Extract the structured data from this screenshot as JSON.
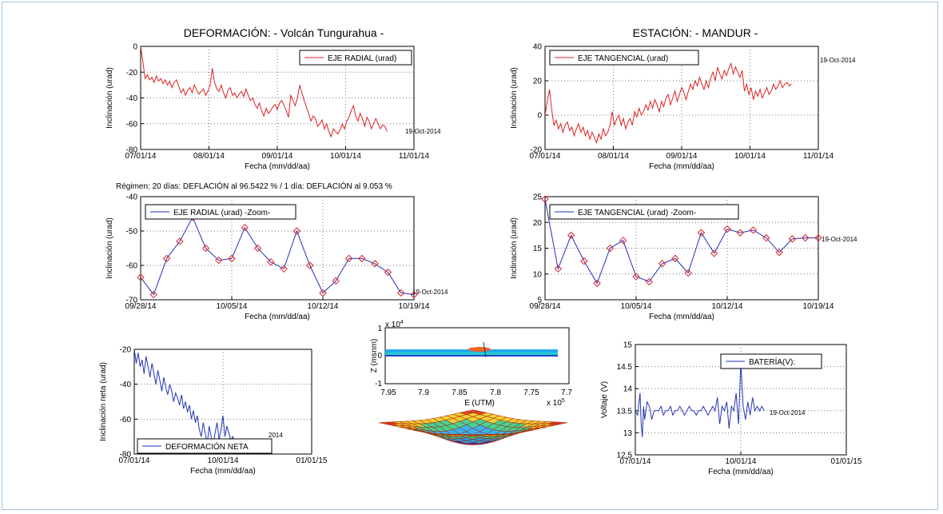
{
  "header": {
    "left_title": "DEFORMACIÓN: - Volcán Tungurahua -",
    "right_title": "ESTACIÓN: - MANDUR -"
  },
  "regimen_text": "Régimen: 20 días: DEFLACIÓN al 96.5422 % / 1 día: DEFLACIÓN al 9.053 %",
  "colors": {
    "red": "#dd2222",
    "blue": "#2233bb",
    "frame": "#9ec5e8"
  },
  "chart_data": [
    {
      "id": "radial",
      "type": "line",
      "xlabel": "Fecha (mm/dd/aa)",
      "ylabel": "Inclinación (urad)",
      "x_ticks": [
        "07/01/14",
        "08/01/14",
        "09/01/14",
        "10/01/14",
        "11/01/14"
      ],
      "y_ticks": [
        "0",
        "-20",
        "-40",
        "-60",
        "-80"
      ],
      "ylim": [
        -80,
        0
      ],
      "grid": true,
      "legend": "top-right",
      "annotation": "19-Oct-2014",
      "series": [
        {
          "name": "EJE RADIAL (urad)",
          "color": "red",
          "x": [
            0,
            1,
            2,
            3,
            4,
            5,
            6,
            7,
            8,
            9,
            10,
            11,
            12,
            13,
            14,
            15,
            16,
            17,
            18,
            19,
            20,
            21,
            22,
            23,
            24,
            25,
            26,
            27,
            28,
            29,
            30,
            31,
            32,
            33,
            34,
            35,
            36,
            37,
            38,
            39,
            40,
            41,
            42,
            43,
            44,
            45,
            46,
            47,
            48,
            49,
            50,
            51,
            52,
            53,
            54,
            55,
            56,
            57,
            58,
            59,
            60,
            61,
            62,
            63,
            64,
            65,
            66,
            67,
            68,
            69,
            70,
            71,
            72,
            73,
            74,
            75,
            76,
            77,
            78,
            79,
            80,
            81,
            82,
            83,
            84,
            85,
            86,
            87,
            88,
            89,
            90,
            91,
            92,
            93,
            94,
            95,
            96,
            97,
            98,
            99,
            100,
            101,
            102,
            103,
            104,
            105,
            106,
            107,
            108,
            109,
            110
          ],
          "values": [
            0,
            -12,
            -25,
            -22,
            -26,
            -24,
            -28,
            -23,
            -27,
            -25,
            -29,
            -26,
            -30,
            -27,
            -32,
            -28,
            -26,
            -31,
            -36,
            -33,
            -38,
            -34,
            -32,
            -36,
            -30,
            -34,
            -37,
            -35,
            -33,
            -38,
            -35,
            -30,
            -17,
            -28,
            -33,
            -35,
            -30,
            -36,
            -40,
            -34,
            -32,
            -38,
            -36,
            -40,
            -37,
            -35,
            -39,
            -33,
            -38,
            -42,
            -40,
            -45,
            -48,
            -44,
            -50,
            -54,
            -48,
            -52,
            -50,
            -47,
            -45,
            -49,
            -44,
            -42,
            -46,
            -50,
            -55,
            -38,
            -42,
            -46,
            -40,
            -30,
            -36,
            -42,
            -47,
            -52,
            -58,
            -54,
            -56,
            -62,
            -60,
            -57,
            -64,
            -60,
            -66,
            -70,
            -64,
            -66,
            -68,
            -65,
            -60,
            -64,
            -58,
            -55,
            -50,
            -46,
            -54,
            -58,
            -52,
            -56,
            -62,
            -55,
            -58,
            -64,
            -60,
            -56,
            -60,
            -64,
            -61,
            -62,
            -66
          ]
        }
      ]
    },
    {
      "id": "tangencial",
      "type": "line",
      "xlabel": "Fecha (mm/dd/aa)",
      "ylabel": "Inclinación (urad)",
      "x_ticks": [
        "07/01/14",
        "08/01/14",
        "09/01/14",
        "10/01/14",
        "11/01/14"
      ],
      "y_ticks": [
        "40",
        "20",
        "0",
        "-20"
      ],
      "ylim": [
        -20,
        40
      ],
      "grid": true,
      "legend": "top-left",
      "annotation": "19-Oct-2014",
      "series": [
        {
          "name": "EJE TANGENCIAL (urad)",
          "color": "red",
          "x": [
            0,
            1,
            2,
            3,
            4,
            5,
            6,
            7,
            8,
            9,
            10,
            11,
            12,
            13,
            14,
            15,
            16,
            17,
            18,
            19,
            20,
            21,
            22,
            23,
            24,
            25,
            26,
            27,
            28,
            29,
            30,
            31,
            32,
            33,
            34,
            35,
            36,
            37,
            38,
            39,
            40,
            41,
            42,
            43,
            44,
            45,
            46,
            47,
            48,
            49,
            50,
            51,
            52,
            53,
            54,
            55,
            56,
            57,
            58,
            59,
            60,
            61,
            62,
            63,
            64,
            65,
            66,
            67,
            68,
            69,
            70,
            71,
            72,
            73,
            74,
            75,
            76,
            77,
            78,
            79,
            80,
            81,
            82,
            83,
            84,
            85,
            86,
            87,
            88,
            89,
            90,
            91,
            92,
            93,
            94,
            95,
            96,
            97,
            98,
            99,
            100,
            101,
            102,
            103,
            104,
            105,
            106,
            107,
            108,
            109,
            110
          ],
          "values": [
            0,
            8,
            15,
            3,
            -6,
            -3,
            -8,
            -5,
            -10,
            -6,
            -4,
            -9,
            -7,
            -12,
            -8,
            -5,
            -10,
            -7,
            -12,
            -9,
            -14,
            -10,
            -13,
            -16,
            -11,
            -14,
            -8,
            -12,
            -10,
            -6,
            2,
            -6,
            -2,
            0,
            -6,
            -2,
            -8,
            -4,
            -2,
            -6,
            2,
            -1,
            4,
            0,
            2,
            6,
            3,
            8,
            4,
            9,
            6,
            2,
            8,
            5,
            10,
            12,
            6,
            10,
            14,
            8,
            12,
            16,
            13,
            9,
            14,
            18,
            15,
            20,
            17,
            22,
            18,
            15,
            20,
            16,
            22,
            25,
            20,
            28,
            24,
            21,
            26,
            23,
            27,
            30,
            24,
            28,
            25,
            22,
            26,
            14,
            18,
            12,
            16,
            9,
            14,
            11,
            15,
            10,
            13,
            16,
            12,
            14,
            18,
            15,
            17,
            20,
            16,
            18,
            19,
            17,
            18
          ]
        }
      ]
    },
    {
      "id": "radial_zoom",
      "type": "line",
      "xlabel": "Fecha (mm/dd/aa)",
      "ylabel": "Inclinación (urad)",
      "x_ticks": [
        "09/28/14",
        "10/05/14",
        "10/12/14",
        "10/19/14"
      ],
      "y_ticks": [
        "-40",
        "-50",
        "-60",
        "-70"
      ],
      "ylim": [
        -70,
        -40
      ],
      "grid": true,
      "legend": "top-left",
      "annotation": "19-Oct-2014",
      "series": [
        {
          "name": "EJE RADIAL (urad) -Zoom-",
          "color": "blue",
          "x": [
            0,
            1,
            2,
            3,
            4,
            5,
            6,
            7,
            8,
            9,
            10,
            11,
            12,
            13,
            14,
            15,
            16,
            17,
            18,
            19,
            20,
            21
          ],
          "values": [
            -63.5,
            -68.5,
            -58,
            -53,
            -46,
            -55,
            -58.5,
            -58,
            -49,
            -55,
            -59,
            -61,
            -50,
            -60,
            -68,
            -64.5,
            -58,
            -58,
            -59.5,
            -62,
            -68,
            -68.5
          ]
        }
      ]
    },
    {
      "id": "tangencial_zoom",
      "type": "line",
      "xlabel": "Fecha (mm/dd/aa)",
      "ylabel": "Inclinación (urad)",
      "x_ticks": [
        "09/28/14",
        "10/05/14",
        "10/12/14",
        "10/19/14"
      ],
      "y_ticks": [
        "25",
        "20",
        "15",
        "10",
        "5"
      ],
      "ylim": [
        5,
        25
      ],
      "grid": true,
      "legend": "top-left",
      "annotation": "19-Oct-2014",
      "series": [
        {
          "name": "EJE TANGENCIAL (urad) -Zoom-",
          "color": "blue",
          "x": [
            0,
            1,
            2,
            3,
            4,
            5,
            6,
            7,
            8,
            9,
            10,
            11,
            12,
            13,
            14,
            15,
            16,
            17,
            18,
            19,
            20,
            21
          ],
          "values": [
            24.5,
            11,
            17.5,
            12.5,
            8.2,
            15,
            16.5,
            9.5,
            8.5,
            12,
            13,
            10.2,
            18,
            14,
            18.7,
            18,
            18.5,
            17,
            14.2,
            16.8,
            17,
            17
          ]
        }
      ]
    },
    {
      "id": "neta",
      "type": "line",
      "xlabel": "Fecha (mm/dd/aa)",
      "ylabel": "Inclinación neta (urad)",
      "x_ticks": [
        "07/01/14",
        "10/01/14",
        "01/01/15"
      ],
      "y_ticks": [
        "-20",
        "-40",
        "-60",
        "-80"
      ],
      "ylim": [
        -80,
        -20
      ],
      "grid": true,
      "legend": "bottom-right",
      "annotation": "2014",
      "series": [
        {
          "name": "DEFORMACIÓN NETA",
          "color": "blue",
          "x": [
            0,
            2,
            4,
            6,
            8,
            10,
            12,
            14,
            16,
            18,
            20,
            22,
            24,
            26,
            28,
            30,
            32,
            34,
            36,
            38,
            40,
            42,
            44,
            46,
            48,
            50,
            52,
            54,
            56,
            58,
            60,
            62,
            64,
            66,
            68,
            70,
            72,
            74,
            76,
            78,
            80,
            82,
            84,
            86,
            88,
            90,
            92,
            94,
            96,
            98,
            100,
            102,
            104,
            106,
            108,
            110
          ],
          "values": [
            -20,
            -28,
            -22,
            -30,
            -26,
            -34,
            -24,
            -30,
            -36,
            -28,
            -34,
            -40,
            -32,
            -38,
            -44,
            -36,
            -42,
            -46,
            -40,
            -44,
            -50,
            -45,
            -48,
            -52,
            -46,
            -54,
            -50,
            -56,
            -52,
            -60,
            -55,
            -62,
            -58,
            -66,
            -70,
            -62,
            -68,
            -74,
            -64,
            -70,
            -76,
            -68,
            -62,
            -72,
            -66,
            -58,
            -70,
            -64,
            -68,
            -72,
            -70,
            -74,
            -72,
            -76,
            -74,
            -75
          ]
        }
      ]
    },
    {
      "id": "bateria",
      "type": "line",
      "xlabel": "Fecha (mm/dd/aa)",
      "ylabel": "Voltaje (V)",
      "x_ticks": [
        "07/01/14",
        "10/01/14",
        "01/01/15"
      ],
      "y_ticks": [
        "15",
        "14.5",
        "14",
        "13.5",
        "13",
        "12.5"
      ],
      "ylim": [
        12.5,
        15
      ],
      "grid": true,
      "legend": "top-right",
      "annotation": "19-Oct-2014",
      "series": [
        {
          "name": "BATERÍA(V):",
          "color": "blue",
          "x": [
            0,
            2,
            4,
            5,
            6,
            7,
            8,
            9,
            10,
            12,
            14,
            16,
            18,
            20,
            22,
            24,
            26,
            28,
            30,
            32,
            34,
            36,
            38,
            40,
            42,
            44,
            46,
            48,
            50,
            52,
            54,
            56,
            58,
            60,
            62,
            64,
            66,
            68,
            70,
            72,
            74,
            76,
            78,
            80,
            82,
            84,
            86,
            88,
            90,
            92,
            94,
            96,
            98,
            100,
            102,
            104,
            106,
            108,
            110
          ],
          "values": [
            13.5,
            13.4,
            13.9,
            13.2,
            12.9,
            13.6,
            13.3,
            13.5,
            13.7,
            13.6,
            13.3,
            13.5,
            13.5,
            13.5,
            13.6,
            13.4,
            13.5,
            13.5,
            13.6,
            13.4,
            13.5,
            13.5,
            13.6,
            13.5,
            13.4,
            13.5,
            13.6,
            13.5,
            13.5,
            13.4,
            13.5,
            13.5,
            13.6,
            13.5,
            13.4,
            13.5,
            13.6,
            13.5,
            13.8,
            13.2,
            13.6,
            13.5,
            13.7,
            13.1,
            13.6,
            13.5,
            13.9,
            13.2,
            14.6,
            13.6,
            13.3,
            13.7,
            13.4,
            13.8,
            13.5,
            13.6,
            13.5,
            13.6,
            13.5
          ]
        }
      ]
    }
  ],
  "model3d": {
    "ylabel": "Z (msnm)",
    "xlabel": "E (UTM)",
    "exp_top": "x 10",
    "exp_top_sup": "4",
    "exp_right": "x 10",
    "exp_right_sup": "5",
    "y_ticks": [
      "1",
      "0",
      "-1"
    ],
    "x_ticks": [
      "7.95",
      "7.9",
      "7.85",
      "7.8",
      "7.75",
      "7.7"
    ]
  }
}
